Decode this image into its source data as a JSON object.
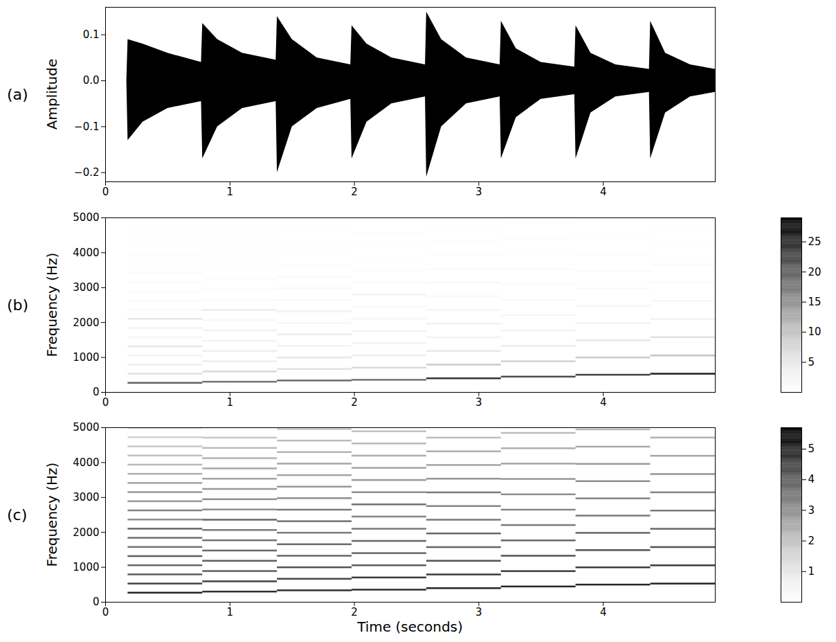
{
  "chart_data": [
    {
      "type": "area",
      "panel_label": "(a)",
      "y_label": "Amplitude",
      "color": "#000000",
      "xlim": [
        0,
        4.9
      ],
      "xticks": [
        0,
        1,
        2,
        3,
        4
      ],
      "ylim": [
        -0.22,
        0.16
      ],
      "yticks": [
        {
          "value": -0.2,
          "label": "−0.2"
        },
        {
          "value": -0.1,
          "label": "−0.1"
        },
        {
          "value": 0,
          "label": "0.0"
        },
        {
          "value": 0.1,
          "label": "0.1"
        }
      ],
      "x": [
        0,
        0.17,
        0.18,
        0.3,
        0.5,
        0.77,
        0.78,
        0.9,
        1.1,
        1.37,
        1.38,
        1.5,
        1.7,
        1.97,
        1.98,
        2.1,
        2.3,
        2.57,
        2.58,
        2.7,
        2.9,
        3.17,
        3.18,
        3.3,
        3.5,
        3.77,
        3.78,
        3.9,
        4.1,
        4.37,
        4.38,
        4.5,
        4.7,
        4.9
      ],
      "upper": [
        0,
        0,
        0.09,
        0.08,
        0.06,
        0.04,
        0.125,
        0.09,
        0.06,
        0.045,
        0.14,
        0.09,
        0.05,
        0.035,
        0.12,
        0.08,
        0.05,
        0.035,
        0.15,
        0.09,
        0.05,
        0.035,
        0.13,
        0.07,
        0.04,
        0.03,
        0.12,
        0.06,
        0.035,
        0.025,
        0.13,
        0.06,
        0.035,
        0.025
      ],
      "lower": [
        0,
        0,
        -0.13,
        -0.09,
        -0.06,
        -0.045,
        -0.17,
        -0.1,
        -0.06,
        -0.045,
        -0.2,
        -0.1,
        -0.06,
        -0.04,
        -0.17,
        -0.09,
        -0.05,
        -0.035,
        -0.21,
        -0.1,
        -0.05,
        -0.035,
        -0.17,
        -0.08,
        -0.04,
        -0.03,
        -0.17,
        -0.07,
        -0.035,
        -0.025,
        -0.17,
        -0.07,
        -0.035,
        -0.025
      ]
    },
    {
      "type": "spectrogram",
      "panel_label": "(b)",
      "y_label": "Frequency (Hz)",
      "color": "greys",
      "xlim": [
        0,
        4.9
      ],
      "xticks": [
        0,
        1,
        2,
        3,
        4
      ],
      "ylim": [
        0,
        5000
      ],
      "yticks": [
        0,
        1000,
        2000,
        3000,
        4000,
        5000
      ],
      "colorbar": {
        "range": [
          0,
          29
        ],
        "ticks": [
          5,
          10,
          15,
          20,
          25
        ]
      },
      "notes": [
        {
          "onset": 0.18,
          "offset": 0.78,
          "harmonics": [
            262,
            524,
            786,
            1048,
            1310,
            1572,
            1834,
            2096,
            2358,
            2620,
            2882,
            3144,
            3406,
            3668,
            3930,
            4192,
            4454,
            4716,
            4978
          ],
          "magnitude": [
            20,
            6,
            4,
            3,
            5,
            2,
            3,
            5,
            1,
            1.5,
            1,
            1,
            1,
            0.8,
            0.6,
            0.5,
            0.4,
            0.3,
            0.3
          ]
        },
        {
          "onset": 0.78,
          "offset": 1.38,
          "harmonics": [
            294,
            588,
            882,
            1176,
            1470,
            1764,
            2058,
            2352,
            2646,
            2940,
            3234,
            3528,
            3822,
            4116,
            4410,
            4704,
            4998
          ],
          "magnitude": [
            18,
            7,
            4,
            4,
            3,
            3,
            2,
            4,
            1,
            1,
            0.8,
            0.8,
            0.6,
            0.5,
            0.5,
            0.4,
            0.3
          ]
        },
        {
          "onset": 1.38,
          "offset": 1.98,
          "harmonics": [
            330,
            660,
            990,
            1320,
            1650,
            1980,
            2310,
            2640,
            2970,
            3300,
            3630,
            3960,
            4290,
            4620,
            4950
          ],
          "magnitude": [
            19,
            6,
            5,
            3,
            4,
            2,
            3,
            2,
            1.5,
            1,
            0.8,
            0.6,
            0.5,
            0.4,
            0.3
          ]
        },
        {
          "onset": 1.98,
          "offset": 2.58,
          "harmonics": [
            349,
            698,
            1047,
            1396,
            1745,
            2094,
            2443,
            2792,
            3141,
            3490,
            3839,
            4188,
            4537,
            4886
          ],
          "magnitude": [
            18,
            7,
            4,
            3,
            3,
            2,
            1.5,
            3,
            1,
            0.8,
            0.6,
            0.5,
            0.4,
            0.3
          ]
        },
        {
          "onset": 2.58,
          "offset": 3.18,
          "harmonics": [
            392,
            784,
            1176,
            1568,
            1960,
            2352,
            2744,
            3136,
            3528,
            3920,
            4312,
            4704
          ],
          "magnitude": [
            24,
            9,
            5,
            3,
            3,
            2,
            1.5,
            2,
            1,
            0.6,
            0.4,
            0.3
          ]
        },
        {
          "onset": 3.18,
          "offset": 3.78,
          "harmonics": [
            440,
            880,
            1320,
            1760,
            2200,
            2640,
            3080,
            3520,
            3960,
            4400,
            4840
          ],
          "magnitude": [
            22,
            8,
            4,
            3,
            2,
            1.5,
            1,
            1,
            0.6,
            0.4,
            0.3
          ]
        },
        {
          "onset": 3.78,
          "offset": 4.38,
          "harmonics": [
            494,
            988,
            1482,
            1976,
            2470,
            2964,
            3458,
            3952,
            4446,
            4940
          ],
          "magnitude": [
            23,
            9,
            5,
            3,
            2,
            1.5,
            1,
            0.8,
            0.5,
            0.3
          ]
        },
        {
          "onset": 4.38,
          "offset": 4.9,
          "harmonics": [
            523,
            1046,
            1569,
            2092,
            2615,
            3138,
            3661,
            4184,
            4707
          ],
          "magnitude": [
            26,
            10,
            6,
            3,
            2,
            1.5,
            1,
            0.6,
            0.4
          ]
        }
      ]
    },
    {
      "type": "spectrogram",
      "panel_label": "(c)",
      "y_label": "Frequency (Hz)",
      "x_label": "Time (seconds)",
      "color": "greys",
      "xlim": [
        0,
        4.9
      ],
      "xticks": [
        0,
        1,
        2,
        3,
        4
      ],
      "ylim": [
        0,
        5000
      ],
      "yticks": [
        0,
        1000,
        2000,
        3000,
        4000,
        5000
      ],
      "colorbar": {
        "range": [
          0,
          5.7
        ],
        "ticks": [
          1,
          2,
          3,
          4,
          5
        ]
      },
      "notes": [
        {
          "onset": 0.18,
          "offset": 0.78,
          "harmonics": [
            262,
            524,
            786,
            1048,
            1310,
            1572,
            1834,
            2096,
            2358,
            2620,
            2882,
            3144,
            3406,
            3668,
            3930,
            4192,
            4454,
            4716,
            4978
          ],
          "magnitude": [
            5,
            4.5,
            4,
            3.8,
            4,
            3.5,
            3.6,
            3.8,
            3,
            3.2,
            2.8,
            2.8,
            2.6,
            2.4,
            2.2,
            2,
            1.8,
            1.6,
            1.4
          ]
        },
        {
          "onset": 0.78,
          "offset": 1.38,
          "harmonics": [
            294,
            588,
            882,
            1176,
            1470,
            1764,
            2058,
            2352,
            2646,
            2940,
            3234,
            3528,
            3822,
            4116,
            4410,
            4704,
            4998
          ],
          "magnitude": [
            4.8,
            4.5,
            4,
            4,
            3.8,
            3.6,
            3.4,
            3.8,
            3,
            3,
            2.8,
            2.6,
            2.5,
            2.3,
            2.1,
            1.9,
            1.7
          ]
        },
        {
          "onset": 1.38,
          "offset": 1.98,
          "harmonics": [
            330,
            660,
            990,
            1320,
            1650,
            1980,
            2310,
            2640,
            2970,
            3300,
            3630,
            3960,
            4290,
            4620,
            4950
          ],
          "magnitude": [
            4.8,
            4.4,
            4.2,
            3.8,
            3.8,
            3.4,
            3.6,
            3.4,
            3,
            2.8,
            2.6,
            2.5,
            2.3,
            2.1,
            1.9
          ]
        },
        {
          "onset": 1.98,
          "offset": 2.58,
          "harmonics": [
            349,
            698,
            1047,
            1396,
            1745,
            2094,
            2443,
            2792,
            3141,
            3490,
            3839,
            4188,
            4537,
            4886
          ],
          "magnitude": [
            4.8,
            4.6,
            4,
            3.8,
            3.8,
            3.4,
            3.2,
            3.6,
            3,
            2.8,
            2.6,
            2.4,
            2.2,
            2
          ]
        },
        {
          "onset": 2.58,
          "offset": 3.18,
          "harmonics": [
            392,
            784,
            1176,
            1568,
            1960,
            2352,
            2744,
            3136,
            3528,
            3920,
            4312,
            4704
          ],
          "magnitude": [
            5,
            4.6,
            4.2,
            3.8,
            3.8,
            3.4,
            3.2,
            3.4,
            2.9,
            2.6,
            2.4,
            2.1
          ]
        },
        {
          "onset": 3.18,
          "offset": 3.78,
          "harmonics": [
            440,
            880,
            1320,
            1760,
            2200,
            2640,
            3080,
            3520,
            3960,
            4400,
            4840
          ],
          "magnitude": [
            5,
            4.6,
            4.2,
            3.8,
            3.4,
            3.2,
            3,
            2.8,
            2.6,
            2.4,
            2.1
          ]
        },
        {
          "onset": 3.78,
          "offset": 4.38,
          "harmonics": [
            494,
            988,
            1482,
            1976,
            2470,
            2964,
            3458,
            3952,
            4446,
            4940
          ],
          "magnitude": [
            5,
            4.6,
            4.2,
            3.8,
            3.4,
            3.2,
            3,
            2.8,
            2.5,
            2.2
          ]
        },
        {
          "onset": 4.38,
          "offset": 4.9,
          "harmonics": [
            523,
            1046,
            1569,
            2092,
            2615,
            3138,
            3661,
            4184,
            4707
          ],
          "magnitude": [
            5,
            4.6,
            4.2,
            3.8,
            3.4,
            3.2,
            2.9,
            2.6,
            2.3
          ]
        }
      ]
    }
  ]
}
